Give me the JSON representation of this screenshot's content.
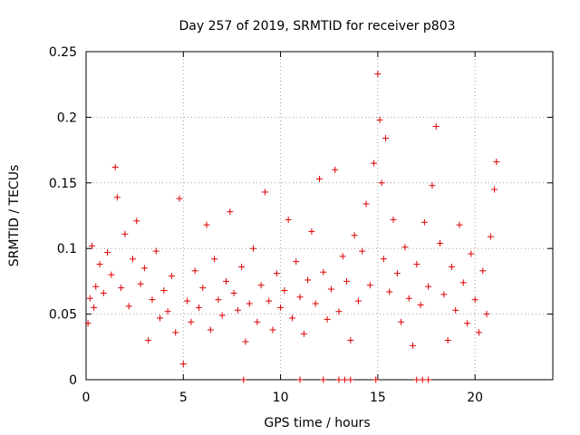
{
  "chart_data": {
    "type": "scatter",
    "title": "Day 257 of 2019, SRMTID for receiver p803",
    "xlabel": "GPS time / hours",
    "ylabel": "SRMTID / TECUs",
    "xlim": [
      0,
      24
    ],
    "ylim": [
      0,
      0.25
    ],
    "xticks": [
      0,
      5,
      10,
      15,
      20
    ],
    "xtick_labels": [
      "0",
      "5",
      "10",
      "15",
      "20"
    ],
    "yticks": [
      0,
      0.05,
      0.1,
      0.15,
      0.2,
      0.25
    ],
    "ytick_labels": [
      "0",
      "0.05",
      "0.1",
      "0.15",
      "0.2",
      "0.25"
    ],
    "grid": true,
    "marker": "plus",
    "marker_color": "#dd0000",
    "series": [
      {
        "name": "SRMTID",
        "points": [
          [
            0.1,
            0.043
          ],
          [
            0.2,
            0.062
          ],
          [
            0.3,
            0.102
          ],
          [
            0.4,
            0.055
          ],
          [
            0.5,
            0.071
          ],
          [
            0.7,
            0.088
          ],
          [
            0.9,
            0.066
          ],
          [
            1.1,
            0.097
          ],
          [
            1.3,
            0.08
          ],
          [
            1.5,
            0.162
          ],
          [
            1.6,
            0.139
          ],
          [
            1.8,
            0.07
          ],
          [
            2.0,
            0.111
          ],
          [
            2.2,
            0.056
          ],
          [
            2.4,
            0.092
          ],
          [
            2.6,
            0.121
          ],
          [
            2.8,
            0.073
          ],
          [
            3.0,
            0.085
          ],
          [
            3.2,
            0.03
          ],
          [
            3.4,
            0.061
          ],
          [
            3.6,
            0.098
          ],
          [
            3.8,
            0.047
          ],
          [
            4.0,
            0.068
          ],
          [
            4.2,
            0.052
          ],
          [
            4.4,
            0.079
          ],
          [
            4.6,
            0.036
          ],
          [
            4.8,
            0.138
          ],
          [
            5.0,
            0.012
          ],
          [
            5.2,
            0.06
          ],
          [
            5.4,
            0.044
          ],
          [
            5.6,
            0.083
          ],
          [
            5.8,
            0.055
          ],
          [
            6.0,
            0.07
          ],
          [
            6.2,
            0.118
          ],
          [
            6.4,
            0.038
          ],
          [
            6.6,
            0.092
          ],
          [
            6.8,
            0.061
          ],
          [
            7.0,
            0.049
          ],
          [
            7.2,
            0.075
          ],
          [
            7.4,
            0.128
          ],
          [
            7.6,
            0.066
          ],
          [
            7.8,
            0.053
          ],
          [
            8.0,
            0.086
          ],
          [
            8.2,
            0.029
          ],
          [
            8.4,
            0.058
          ],
          [
            8.6,
            0.1
          ],
          [
            8.8,
            0.044
          ],
          [
            9.0,
            0.072
          ],
          [
            9.2,
            0.143
          ],
          [
            9.4,
            0.06
          ],
          [
            9.6,
            0.038
          ],
          [
            9.8,
            0.081
          ],
          [
            10.0,
            0.055
          ],
          [
            10.2,
            0.068
          ],
          [
            10.4,
            0.122
          ],
          [
            10.6,
            0.047
          ],
          [
            10.8,
            0.09
          ],
          [
            11.0,
            0.063
          ],
          [
            11.2,
            0.035
          ],
          [
            11.4,
            0.076
          ],
          [
            11.6,
            0.113
          ],
          [
            11.8,
            0.058
          ],
          [
            12.0,
            0.153
          ],
          [
            12.2,
            0.082
          ],
          [
            12.4,
            0.046
          ],
          [
            12.6,
            0.069
          ],
          [
            12.8,
            0.16
          ],
          [
            13.0,
            0.052
          ],
          [
            13.2,
            0.094
          ],
          [
            13.4,
            0.075
          ],
          [
            13.6,
            0.03
          ],
          [
            13.8,
            0.11
          ],
          [
            14.0,
            0.06
          ],
          [
            14.2,
            0.098
          ],
          [
            14.4,
            0.134
          ],
          [
            14.6,
            0.072
          ],
          [
            14.8,
            0.165
          ],
          [
            15.0,
            0.233
          ],
          [
            15.1,
            0.198
          ],
          [
            15.2,
            0.15
          ],
          [
            15.3,
            0.092
          ],
          [
            15.4,
            0.184
          ],
          [
            15.6,
            0.067
          ],
          [
            15.8,
            0.122
          ],
          [
            16.0,
            0.081
          ],
          [
            16.2,
            0.044
          ],
          [
            16.4,
            0.101
          ],
          [
            16.6,
            0.062
          ],
          [
            16.8,
            0.026
          ],
          [
            17.0,
            0.088
          ],
          [
            17.2,
            0.057
          ],
          [
            17.4,
            0.12
          ],
          [
            17.6,
            0.071
          ],
          [
            17.8,
            0.148
          ],
          [
            18.0,
            0.193
          ],
          [
            18.2,
            0.104
          ],
          [
            18.4,
            0.065
          ],
          [
            18.6,
            0.03
          ],
          [
            18.8,
            0.086
          ],
          [
            19.0,
            0.053
          ],
          [
            19.2,
            0.118
          ],
          [
            19.4,
            0.074
          ],
          [
            19.6,
            0.043
          ],
          [
            19.8,
            0.096
          ],
          [
            20.0,
            0.061
          ],
          [
            20.2,
            0.036
          ],
          [
            20.4,
            0.083
          ],
          [
            20.6,
            0.05
          ],
          [
            20.8,
            0.109
          ],
          [
            21.0,
            0.145
          ],
          [
            21.1,
            0.166
          ]
        ]
      }
    ],
    "zero_markers_x": [
      8.1,
      11.0,
      12.2,
      13.0,
      13.3,
      13.6,
      14.9,
      17.0,
      17.3,
      17.6
    ]
  }
}
